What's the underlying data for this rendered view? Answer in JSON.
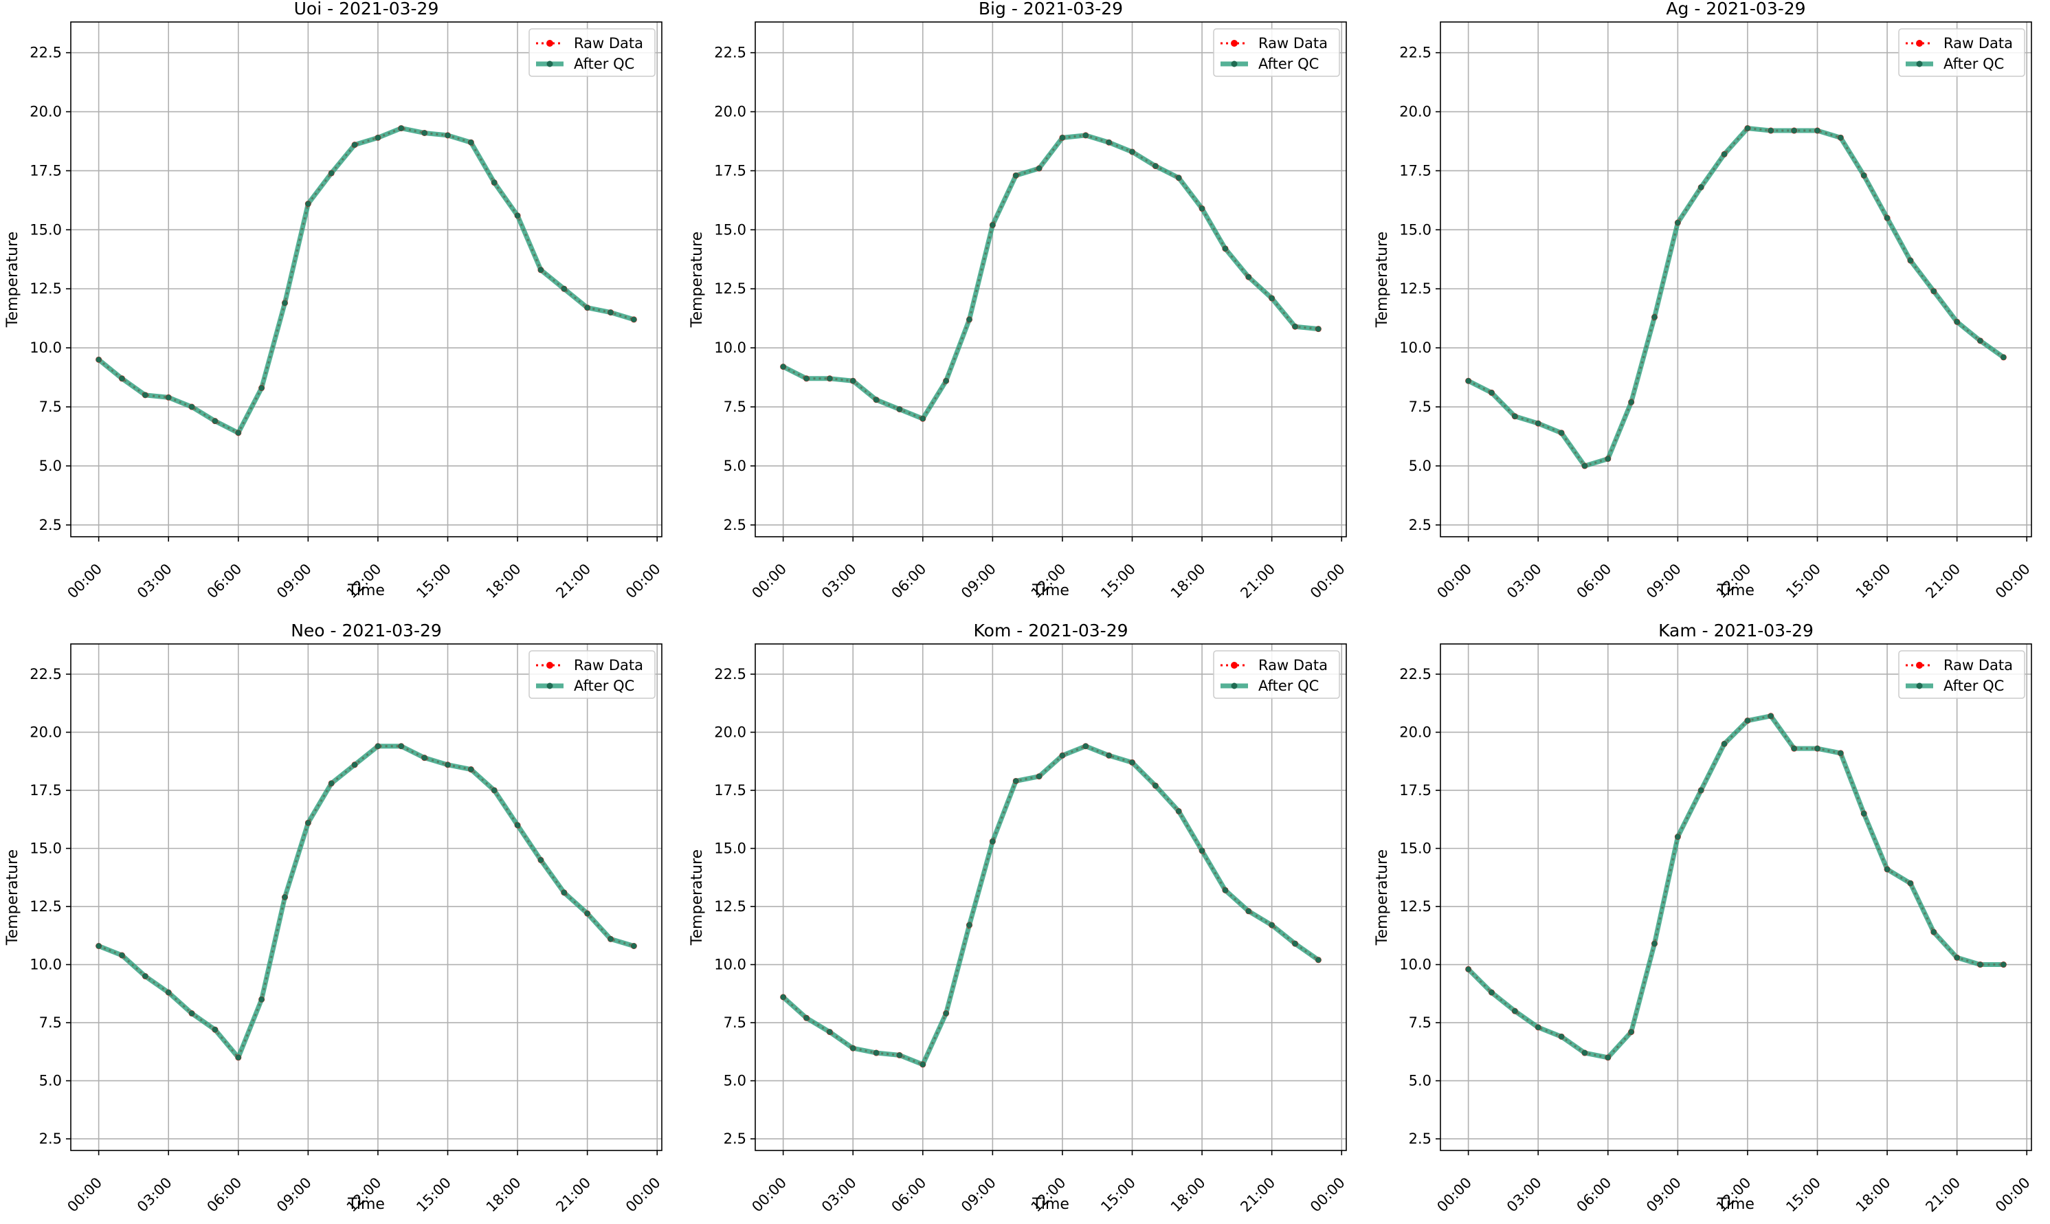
{
  "colors": {
    "raw": "#ff0000",
    "qc": "#2a9d7c",
    "qc_marker": "#1f6b52",
    "grid": "#b0b0b0",
    "axis": "#000000"
  },
  "legend": {
    "placement": "top-right",
    "raw_label": "Raw Data",
    "qc_label": "After QC"
  },
  "chart_data": [
    {
      "type": "line",
      "title": "Uoi - 2021-03-29",
      "xlabel": "Time",
      "ylabel": "Temperature",
      "x_ticks": [
        "00:00",
        "03:00",
        "06:00",
        "09:00",
        "12:00",
        "15:00",
        "18:00",
        "21:00",
        "00:00"
      ],
      "y_ticks": [
        "2.5",
        "5.0",
        "7.5",
        "10.0",
        "12.5",
        "15.0",
        "17.5",
        "20.0",
        "22.5"
      ],
      "xlim": [
        -1.2,
        24.2
      ],
      "ylim": [
        2.0,
        23.8
      ],
      "grid": true,
      "x": [
        0,
        1,
        2,
        3,
        4,
        5,
        6,
        7,
        8,
        9,
        10,
        11,
        12,
        13,
        14,
        15,
        16,
        17,
        18,
        19,
        20,
        21,
        22,
        23
      ],
      "series": [
        {
          "name": "Raw Data",
          "values": [
            9.5,
            8.7,
            8.0,
            7.9,
            7.5,
            6.9,
            6.4,
            8.3,
            11.9,
            16.1,
            17.4,
            18.6,
            18.9,
            19.3,
            19.1,
            19.0,
            18.7,
            17.0,
            15.6,
            13.3,
            12.5,
            11.7,
            11.5,
            11.2
          ]
        },
        {
          "name": "After QC",
          "values": [
            9.5,
            8.7,
            8.0,
            7.9,
            7.5,
            6.9,
            6.4,
            8.3,
            11.9,
            16.1,
            17.4,
            18.6,
            18.9,
            19.3,
            19.1,
            19.0,
            18.7,
            17.0,
            15.6,
            13.3,
            12.5,
            11.7,
            11.5,
            11.2
          ]
        }
      ]
    },
    {
      "type": "line",
      "title": "Big - 2021-03-29",
      "xlabel": "Time",
      "ylabel": "Temperature",
      "x_ticks": [
        "00:00",
        "03:00",
        "06:00",
        "09:00",
        "12:00",
        "15:00",
        "18:00",
        "21:00",
        "00:00"
      ],
      "y_ticks": [
        "2.5",
        "5.0",
        "7.5",
        "10.0",
        "12.5",
        "15.0",
        "17.5",
        "20.0",
        "22.5"
      ],
      "xlim": [
        -1.2,
        24.2
      ],
      "ylim": [
        2.0,
        23.8
      ],
      "grid": true,
      "x": [
        0,
        1,
        2,
        3,
        4,
        5,
        6,
        7,
        8,
        9,
        10,
        11,
        12,
        13,
        14,
        15,
        16,
        17,
        18,
        19,
        20,
        21,
        22,
        23
      ],
      "series": [
        {
          "name": "Raw Data",
          "values": [
            9.2,
            8.7,
            8.7,
            8.6,
            7.8,
            7.4,
            7.0,
            8.6,
            11.2,
            15.2,
            17.3,
            17.6,
            18.9,
            19.0,
            18.7,
            18.3,
            17.7,
            17.2,
            15.9,
            14.2,
            13.0,
            12.1,
            10.9,
            10.8
          ]
        },
        {
          "name": "After QC",
          "values": [
            9.2,
            8.7,
            8.7,
            8.6,
            7.8,
            7.4,
            7.0,
            8.6,
            11.2,
            15.2,
            17.3,
            17.6,
            18.9,
            19.0,
            18.7,
            18.3,
            17.7,
            17.2,
            15.9,
            14.2,
            13.0,
            12.1,
            10.9,
            10.8
          ]
        }
      ]
    },
    {
      "type": "line",
      "title": "Ag - 2021-03-29",
      "xlabel": "Time",
      "ylabel": "Temperature",
      "x_ticks": [
        "00:00",
        "03:00",
        "06:00",
        "09:00",
        "12:00",
        "15:00",
        "18:00",
        "21:00",
        "00:00"
      ],
      "y_ticks": [
        "2.5",
        "5.0",
        "7.5",
        "10.0",
        "12.5",
        "15.0",
        "17.5",
        "20.0",
        "22.5"
      ],
      "xlim": [
        -1.2,
        24.2
      ],
      "ylim": [
        2.0,
        23.8
      ],
      "grid": true,
      "x": [
        0,
        1,
        2,
        3,
        4,
        5,
        6,
        7,
        8,
        9,
        10,
        11,
        12,
        13,
        14,
        15,
        16,
        17,
        18,
        19,
        20,
        21,
        22,
        23
      ],
      "series": [
        {
          "name": "Raw Data",
          "values": [
            8.6,
            8.1,
            7.1,
            6.8,
            6.4,
            5.0,
            5.3,
            7.7,
            11.3,
            15.3,
            16.8,
            18.2,
            19.3,
            19.2,
            19.2,
            19.2,
            18.9,
            17.3,
            15.5,
            13.7,
            12.4,
            11.1,
            10.3,
            9.6
          ]
        },
        {
          "name": "After QC",
          "values": [
            8.6,
            8.1,
            7.1,
            6.8,
            6.4,
            5.0,
            5.3,
            7.7,
            11.3,
            15.3,
            16.8,
            18.2,
            19.3,
            19.2,
            19.2,
            19.2,
            18.9,
            17.3,
            15.5,
            13.7,
            12.4,
            11.1,
            10.3,
            9.6
          ]
        }
      ]
    },
    {
      "type": "line",
      "title": "Neo - 2021-03-29",
      "xlabel": "Time",
      "ylabel": "Temperature",
      "x_ticks": [
        "00:00",
        "03:00",
        "06:00",
        "09:00",
        "12:00",
        "15:00",
        "18:00",
        "21:00",
        "00:00"
      ],
      "y_ticks": [
        "2.5",
        "5.0",
        "7.5",
        "10.0",
        "12.5",
        "15.0",
        "17.5",
        "20.0",
        "22.5"
      ],
      "xlim": [
        -1.2,
        24.2
      ],
      "ylim": [
        2.0,
        23.8
      ],
      "grid": true,
      "x": [
        0,
        1,
        2,
        3,
        4,
        5,
        6,
        7,
        8,
        9,
        10,
        11,
        12,
        13,
        14,
        15,
        16,
        17,
        18,
        19,
        20,
        21,
        22,
        23
      ],
      "series": [
        {
          "name": "Raw Data",
          "values": [
            10.8,
            10.4,
            9.5,
            8.8,
            7.9,
            7.2,
            6.0,
            8.5,
            12.9,
            16.1,
            17.8,
            18.6,
            19.4,
            19.4,
            18.9,
            18.6,
            18.4,
            17.5,
            16.0,
            14.5,
            13.1,
            12.2,
            11.1,
            10.8
          ]
        },
        {
          "name": "After QC",
          "values": [
            10.8,
            10.4,
            9.5,
            8.8,
            7.9,
            7.2,
            6.0,
            8.5,
            12.9,
            16.1,
            17.8,
            18.6,
            19.4,
            19.4,
            18.9,
            18.6,
            18.4,
            17.5,
            16.0,
            14.5,
            13.1,
            12.2,
            11.1,
            10.8
          ]
        }
      ]
    },
    {
      "type": "line",
      "title": "Kom - 2021-03-29",
      "xlabel": "Time",
      "ylabel": "Temperature",
      "x_ticks": [
        "00:00",
        "03:00",
        "06:00",
        "09:00",
        "12:00",
        "15:00",
        "18:00",
        "21:00",
        "00:00"
      ],
      "y_ticks": [
        "2.5",
        "5.0",
        "7.5",
        "10.0",
        "12.5",
        "15.0",
        "17.5",
        "20.0",
        "22.5"
      ],
      "xlim": [
        -1.2,
        24.2
      ],
      "ylim": [
        2.0,
        23.8
      ],
      "grid": true,
      "x": [
        0,
        1,
        2,
        3,
        4,
        5,
        6,
        7,
        8,
        9,
        10,
        11,
        12,
        13,
        14,
        15,
        16,
        17,
        18,
        19,
        20,
        21,
        22,
        23
      ],
      "series": [
        {
          "name": "Raw Data",
          "values": [
            8.6,
            7.7,
            7.1,
            6.4,
            6.2,
            6.1,
            5.7,
            7.9,
            11.7,
            15.3,
            17.9,
            18.1,
            19.0,
            19.4,
            19.0,
            18.7,
            17.7,
            16.6,
            14.9,
            13.2,
            12.3,
            11.7,
            10.9,
            10.2
          ]
        },
        {
          "name": "After QC",
          "values": [
            8.6,
            7.7,
            7.1,
            6.4,
            6.2,
            6.1,
            5.7,
            7.9,
            11.7,
            15.3,
            17.9,
            18.1,
            19.0,
            19.4,
            19.0,
            18.7,
            17.7,
            16.6,
            14.9,
            13.2,
            12.3,
            11.7,
            10.9,
            10.2
          ]
        }
      ]
    },
    {
      "type": "line",
      "title": "Kam - 2021-03-29",
      "xlabel": "Time",
      "ylabel": "Temperature",
      "x_ticks": [
        "00:00",
        "03:00",
        "06:00",
        "09:00",
        "12:00",
        "15:00",
        "18:00",
        "21:00",
        "00:00"
      ],
      "y_ticks": [
        "2.5",
        "5.0",
        "7.5",
        "10.0",
        "12.5",
        "15.0",
        "17.5",
        "20.0",
        "22.5"
      ],
      "xlim": [
        -1.2,
        24.2
      ],
      "ylim": [
        2.0,
        23.8
      ],
      "grid": true,
      "x": [
        0,
        1,
        2,
        3,
        4,
        5,
        6,
        7,
        8,
        9,
        10,
        11,
        12,
        13,
        14,
        15,
        16,
        17,
        18,
        19,
        20,
        21,
        22,
        23
      ],
      "series": [
        {
          "name": "Raw Data",
          "values": [
            9.8,
            8.8,
            8.0,
            7.3,
            6.9,
            6.2,
            6.0,
            7.1,
            10.9,
            15.5,
            17.5,
            19.5,
            20.5,
            20.7,
            19.3,
            19.3,
            19.1,
            16.5,
            14.1,
            13.5,
            11.4,
            10.3,
            10.0,
            10.0
          ]
        },
        {
          "name": "After QC",
          "values": [
            9.8,
            8.8,
            8.0,
            7.3,
            6.9,
            6.2,
            6.0,
            7.1,
            10.9,
            15.5,
            17.5,
            19.5,
            20.5,
            20.7,
            19.3,
            19.3,
            19.1,
            16.5,
            14.1,
            13.5,
            11.4,
            10.3,
            10.0,
            10.0
          ]
        }
      ]
    }
  ]
}
